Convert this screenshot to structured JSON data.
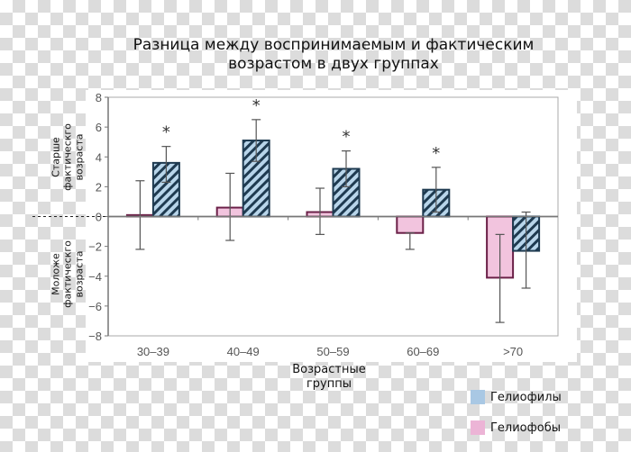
{
  "chart_data": {
    "type": "bar",
    "title": "Разница между воспринимаемым и фактическим возрастом в двух группах",
    "xlabel": "Возрастные группы",
    "ylabel_upper": "Старше фактическгo возраста",
    "ylabel_lower": "Моложе фактическгo возраста",
    "ylim": [
      -8,
      8
    ],
    "yticks": [
      8,
      6,
      4,
      2,
      0,
      -2,
      -4,
      -6,
      -8
    ],
    "categories": [
      "30–39",
      "40–49",
      "50–59",
      "60–69",
      ">70"
    ],
    "legend_placement": "bottom-right",
    "series": [
      {
        "name": "Гелиофобы",
        "color": "#f2c4de",
        "edge": "#6b2048",
        "hatched": false,
        "values": [
          0.1,
          0.6,
          0.3,
          -1.1,
          -4.1
        ],
        "err_low": [
          -2.2,
          -1.6,
          -1.2,
          -2.2,
          -7.1
        ],
        "err_high": [
          2.4,
          2.9,
          1.9,
          -1.1,
          -1.2
        ]
      },
      {
        "name": "Гелиофилы",
        "color": "#b8d5ea",
        "edge": "#1e3a50",
        "hatched": true,
        "values": [
          3.6,
          5.1,
          3.2,
          1.8,
          -2.3
        ],
        "err_low": [
          2.3,
          3.7,
          2.0,
          0.3,
          -4.8
        ],
        "err_high": [
          4.7,
          6.5,
          4.4,
          3.3,
          0.3
        ]
      }
    ],
    "significance_marker": "*",
    "significant": [
      true,
      true,
      true,
      true,
      false
    ]
  },
  "title_line1": "Разница между воспринимаемым и фактическим",
  "title_line2": "возрастом в двух группах",
  "ylabel_upper_lines": [
    "Старше",
    "фактическгo",
    "возраста"
  ],
  "ylabel_lower_lines": [
    "Моложе",
    "фактическгo",
    "возраста"
  ],
  "xlabel_lines": [
    "Возрастные",
    "группы"
  ],
  "legend": [
    {
      "label": "Гелиофилы",
      "color": "#a9c8e4"
    },
    {
      "label": "Гелиофобы",
      "color": "#ecb4d6"
    }
  ]
}
